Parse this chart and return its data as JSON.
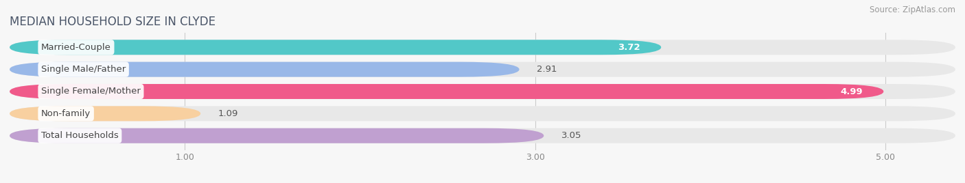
{
  "title": "MEDIAN HOUSEHOLD SIZE IN CLYDE",
  "source": "Source: ZipAtlas.com",
  "categories": [
    "Married-Couple",
    "Single Male/Father",
    "Single Female/Mother",
    "Non-family",
    "Total Households"
  ],
  "values": [
    3.72,
    2.91,
    4.99,
    1.09,
    3.05
  ],
  "bar_colors": [
    "#52c8c8",
    "#99b8e8",
    "#f05a8a",
    "#f8d0a0",
    "#c0a0d0"
  ],
  "xlim_left": 0.0,
  "xlim_right": 5.4,
  "data_min": 1.0,
  "data_max": 5.0,
  "xticks": [
    1.0,
    3.0,
    5.0
  ],
  "background_color": "#f7f7f7",
  "bar_bg_color": "#e8e8e8",
  "title_fontsize": 12,
  "source_fontsize": 8.5,
  "label_fontsize": 9.5,
  "value_fontsize": 9.5
}
